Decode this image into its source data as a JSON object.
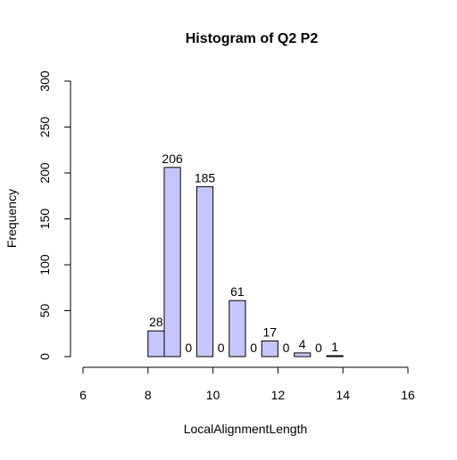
{
  "chart_data": {
    "type": "bar",
    "title": "Histogram of Q2 P2",
    "xlabel": "LocalAlignmentLength",
    "ylabel": "Frequency",
    "bins": [
      {
        "start": 8.0,
        "end": 8.5,
        "value": 28
      },
      {
        "start": 8.5,
        "end": 9.0,
        "value": 206
      },
      {
        "start": 9.0,
        "end": 9.5,
        "value": 0
      },
      {
        "start": 9.5,
        "end": 10.0,
        "value": 185
      },
      {
        "start": 10.0,
        "end": 10.5,
        "value": 0
      },
      {
        "start": 10.5,
        "end": 11.0,
        "value": 61
      },
      {
        "start": 11.0,
        "end": 11.5,
        "value": 0
      },
      {
        "start": 11.5,
        "end": 12.0,
        "value": 17
      },
      {
        "start": 12.0,
        "end": 12.5,
        "value": 0
      },
      {
        "start": 12.5,
        "end": 13.0,
        "value": 4
      },
      {
        "start": 13.0,
        "end": 13.5,
        "value": 0
      },
      {
        "start": 13.5,
        "end": 14.0,
        "value": 1
      }
    ],
    "xlim": [
      6,
      16
    ],
    "ylim": [
      0,
      300
    ],
    "x_ticks": [
      "6",
      "8",
      "10",
      "12",
      "14",
      "16"
    ],
    "y_ticks": [
      "0",
      "50",
      "100",
      "150",
      "200",
      "250",
      "300"
    ],
    "bar_color": "#c6c6ff",
    "bar_border_color": "#000000",
    "grid": false,
    "legend": "none"
  }
}
